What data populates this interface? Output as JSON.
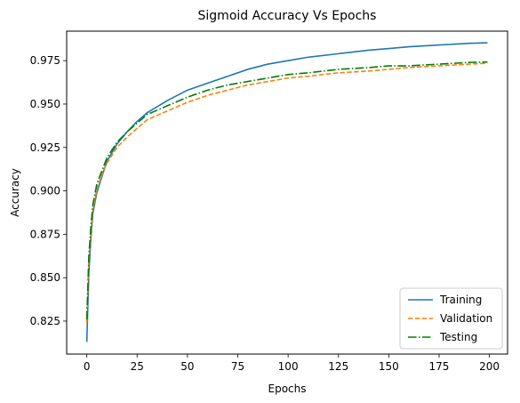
{
  "chart_data": {
    "type": "line",
    "title": "Sigmoid Accuracy Vs Epochs",
    "xlabel": "Epochs",
    "ylabel": "Accuracy",
    "xlim": [
      -10,
      209
    ],
    "ylim": [
      0.806,
      0.992
    ],
    "xticks": [
      0,
      25,
      50,
      75,
      100,
      125,
      150,
      175,
      200
    ],
    "yticks": [
      0.825,
      0.85,
      0.875,
      0.9,
      0.925,
      0.95,
      0.975
    ],
    "ytick_labels": [
      "0.825",
      "0.850",
      "0.875",
      "0.900",
      "0.925",
      "0.950",
      "0.975"
    ],
    "grid": false,
    "legend_position": "lower right",
    "series": [
      {
        "name": "Training",
        "color": "#1f77b4",
        "dash": "solid",
        "points": [
          [
            0,
            0.813
          ],
          [
            1,
            0.852
          ],
          [
            2,
            0.872
          ],
          [
            3,
            0.887
          ],
          [
            5,
            0.899
          ],
          [
            8,
            0.91
          ],
          [
            10,
            0.917
          ],
          [
            15,
            0.927
          ],
          [
            20,
            0.934
          ],
          [
            25,
            0.94
          ],
          [
            30,
            0.945
          ],
          [
            40,
            0.952
          ],
          [
            50,
            0.958
          ],
          [
            60,
            0.962
          ],
          [
            70,
            0.966
          ],
          [
            80,
            0.97
          ],
          [
            90,
            0.973
          ],
          [
            100,
            0.975
          ],
          [
            110,
            0.977
          ],
          [
            125,
            0.979
          ],
          [
            140,
            0.981
          ],
          [
            150,
            0.982
          ],
          [
            160,
            0.983
          ],
          [
            175,
            0.984
          ],
          [
            190,
            0.985
          ],
          [
            199,
            0.9853
          ]
        ]
      },
      {
        "name": "Validation",
        "color": "#ff7f0e",
        "dash": "dashed",
        "points": [
          [
            0,
            0.824
          ],
          [
            1,
            0.859
          ],
          [
            2,
            0.875
          ],
          [
            3,
            0.889
          ],
          [
            5,
            0.901
          ],
          [
            8,
            0.911
          ],
          [
            10,
            0.916
          ],
          [
            15,
            0.925
          ],
          [
            20,
            0.931
          ],
          [
            25,
            0.936
          ],
          [
            30,
            0.941
          ],
          [
            40,
            0.946
          ],
          [
            50,
            0.951
          ],
          [
            60,
            0.955
          ],
          [
            70,
            0.958
          ],
          [
            80,
            0.961
          ],
          [
            90,
            0.963
          ],
          [
            100,
            0.965
          ],
          [
            110,
            0.966
          ],
          [
            125,
            0.968
          ],
          [
            140,
            0.969
          ],
          [
            150,
            0.97
          ],
          [
            160,
            0.971
          ],
          [
            175,
            0.972
          ],
          [
            190,
            0.973
          ],
          [
            199,
            0.9735
          ]
        ]
      },
      {
        "name": "Testing",
        "color": "#008000",
        "dash": "dashdot",
        "points": [
          [
            0,
            0.826
          ],
          [
            1,
            0.862
          ],
          [
            2,
            0.879
          ],
          [
            3,
            0.892
          ],
          [
            5,
            0.904
          ],
          [
            8,
            0.913
          ],
          [
            10,
            0.919
          ],
          [
            15,
            0.928
          ],
          [
            20,
            0.934
          ],
          [
            25,
            0.939
          ],
          [
            30,
            0.944
          ],
          [
            40,
            0.949
          ],
          [
            50,
            0.954
          ],
          [
            60,
            0.958
          ],
          [
            70,
            0.961
          ],
          [
            80,
            0.963
          ],
          [
            90,
            0.965
          ],
          [
            100,
            0.967
          ],
          [
            110,
            0.968
          ],
          [
            125,
            0.97
          ],
          [
            140,
            0.971
          ],
          [
            150,
            0.972
          ],
          [
            160,
            0.972
          ],
          [
            175,
            0.973
          ],
          [
            190,
            0.974
          ],
          [
            199,
            0.9742
          ]
        ]
      }
    ]
  }
}
